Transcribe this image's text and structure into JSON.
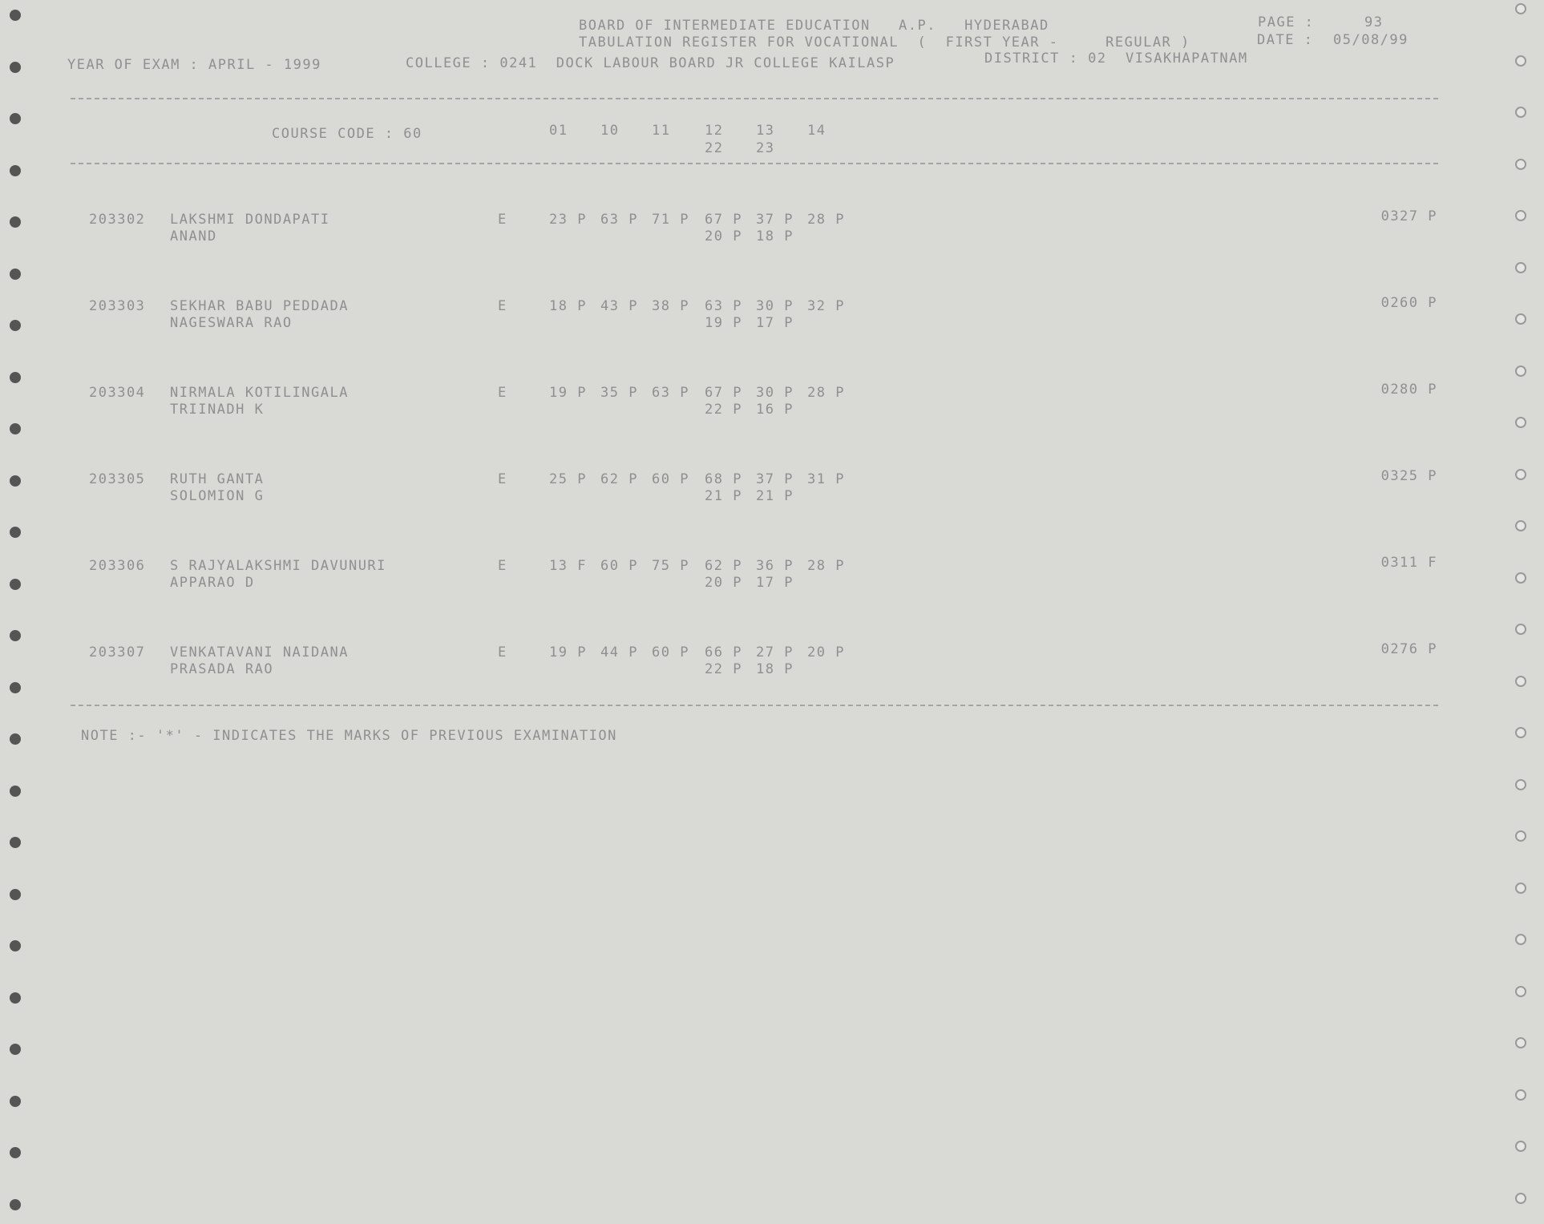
{
  "header": {
    "line1": "BOARD OF INTERMEDIATE EDUCATION   A.P.   HYDERABAD",
    "page_label": "PAGE :",
    "page": "93",
    "line2": "TABULATION REGISTER FOR VOCATIONAL  (  FIRST YEAR -     REGULAR )",
    "date_label": "DATE :",
    "date": "05/08/99",
    "year_of_exam": "YEAR OF EXAM : APRIL - 1999",
    "college": "COLLEGE : 0241  DOCK LABOUR BOARD JR COLLEGE KAILASP",
    "district": "DISTRICT : 02  VISAKHAPATNAM"
  },
  "column_header": {
    "course_code": "COURSE CODE : 60",
    "subjects_row1": [
      "01",
      "10",
      "11",
      "12",
      "13",
      "14"
    ],
    "subjects_row2": [
      "22",
      "23"
    ]
  },
  "records": [
    {
      "roll": "203302",
      "name_line1": "LAKSHMI DONDAPATI",
      "name_line2": "ANAND",
      "medium": "E",
      "marks_row1": [
        "23 P",
        "63 P",
        "71 P",
        "67 P",
        "37 P",
        "28 P"
      ],
      "marks_row2": [
        "20 P",
        "18 P"
      ],
      "total": "0327 P"
    },
    {
      "roll": "203303",
      "name_line1": "SEKHAR BABU PEDDADA",
      "name_line2": "NAGESWARA RAO",
      "medium": "E",
      "marks_row1": [
        "18 P",
        "43 P",
        "38 P",
        "63 P",
        "30 P",
        "32 P"
      ],
      "marks_row2": [
        "19 P",
        "17 P"
      ],
      "total": "0260 P"
    },
    {
      "roll": "203304",
      "name_line1": "NIRMALA KOTILINGALA",
      "name_line2": "TRIINADH K",
      "medium": "E",
      "marks_row1": [
        "19 P",
        "35 P",
        "63 P",
        "67 P",
        "30 P",
        "28 P"
      ],
      "marks_row2": [
        "22 P",
        "16 P"
      ],
      "total": "0280 P"
    },
    {
      "roll": "203305",
      "name_line1": "RUTH GANTA",
      "name_line2": "SOLOMION G",
      "medium": "E",
      "marks_row1": [
        "25 P",
        "62 P",
        "60 P",
        "68 P",
        "37 P",
        "31 P"
      ],
      "marks_row2": [
        "21 P",
        "21 P"
      ],
      "total": "0325 P"
    },
    {
      "roll": "203306",
      "name_line1": "S RAJYALAKSHMI DAVUNURI",
      "name_line2": "APPARAO D",
      "medium": "E",
      "marks_row1": [
        "13 F",
        "60 P",
        "75 P",
        "62 P",
        "36 P",
        "28 P"
      ],
      "marks_row2": [
        "20 P",
        "17 P"
      ],
      "total": "0311 F"
    },
    {
      "roll": "203307",
      "name_line1": "VENKATAVANI NAIDANA",
      "name_line2": "PRASADA RAO",
      "medium": "E",
      "marks_row1": [
        "19 P",
        "44 P",
        "60 P",
        "66 P",
        "27 P",
        "20 P"
      ],
      "marks_row2": [
        "22 P",
        "18 P"
      ],
      "total": "0276 P"
    }
  ],
  "note": "NOTE :- '*' - INDICATES THE MARKS OF PREVIOUS EXAMINATION"
}
